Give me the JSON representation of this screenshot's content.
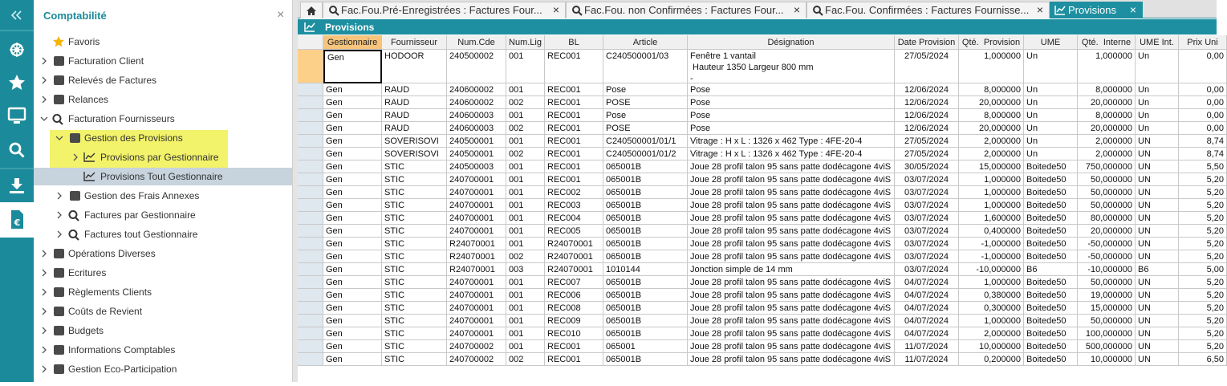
{
  "sidebar": {
    "title": "Comptabilité",
    "close": "×",
    "items": [
      {
        "label": "Favoris"
      },
      {
        "label": "Facturation Client"
      },
      {
        "label": "Relevés de Factures"
      },
      {
        "label": "Relances"
      },
      {
        "label": "Facturation Fournisseurs"
      },
      {
        "label": "Gestion des Provisions"
      },
      {
        "label": "Provisions par Gestionnaire"
      },
      {
        "label": "Provisions Tout Gestionnaire"
      },
      {
        "label": "Gestion des Frais Annexes"
      },
      {
        "label": "Factures par Gestionnaire"
      },
      {
        "label": "Factures tout Gestionnaire"
      },
      {
        "label": "Opérations Diverses"
      },
      {
        "label": "Ecritures"
      },
      {
        "label": "Règlements Clients"
      },
      {
        "label": "Coûts de Revient"
      },
      {
        "label": "Budgets"
      },
      {
        "label": "Informations Comptables"
      },
      {
        "label": "Gestion Eco-Participation"
      }
    ]
  },
  "tabs": [
    {
      "label": "Fac.Fou.Pré-Enregistrées : Factures Four...",
      "close": "×"
    },
    {
      "label": "Fac.Fou. non Confirmées : Factures Four...",
      "close": "×"
    },
    {
      "label": "Fac.Fou. Confirmées : Factures Fournisse...",
      "close": "×"
    },
    {
      "label": "Provisions",
      "close": "×"
    }
  ],
  "panel": {
    "title": "Provisions"
  },
  "table": {
    "columns": [
      "Gestionnaire",
      "Fournisseur",
      "Num.Cde",
      "Num.Lig",
      "BL",
      "Article",
      "Désignation",
      "Date Provision",
      "Qté.  Provision",
      "UME",
      "Qté.  Interne",
      "UME Int.",
      "Prix Uni"
    ],
    "rows": [
      [
        "Gen",
        "HODOOR",
        "240500002",
        "001",
        "REC001",
        "C240500001/03",
        "Fenêtre 1 vantail\n Hauteur 1350 Largeur 800 mm\n-",
        "27/05/2024",
        "1,000000",
        "Un",
        "1,000000",
        "Un",
        "0,00"
      ],
      [
        "Gen",
        "RAUD",
        "240600002",
        "001",
        "REC001",
        "Pose",
        "Pose",
        "12/06/2024",
        "8,000000",
        "Un",
        "8,000000",
        "Un",
        "0,00"
      ],
      [
        "Gen",
        "RAUD",
        "240600002",
        "002",
        "REC001",
        "POSE",
        "Pose",
        "12/06/2024",
        "20,000000",
        "Un",
        "20,000000",
        "Un",
        "0,00"
      ],
      [
        "Gen",
        "RAUD",
        "240600003",
        "001",
        "REC001",
        "Pose",
        "Pose",
        "12/06/2024",
        "8,000000",
        "Un",
        "8,000000",
        "Un",
        "0,00"
      ],
      [
        "Gen",
        "RAUD",
        "240600003",
        "002",
        "REC001",
        "POSE",
        "Pose",
        "12/06/2024",
        "20,000000",
        "Un",
        "20,000000",
        "Un",
        "0,00"
      ],
      [
        "Gen",
        "SOVERISOVI",
        "240500001",
        "001",
        "REC001",
        "C240500001/01/1",
        "Vitrage : H x L : 1326 x 462 Type : 4FE-20-4",
        "27/05/2024",
        "2,000000",
        "Un",
        "2,000000",
        "UN",
        "8,74"
      ],
      [
        "Gen",
        "SOVERISOVI",
        "240500001",
        "002",
        "REC001",
        "C240500001/01/2",
        "Vitrage : H x L : 1326 x 462 Type : 4FE-20-4",
        "27/05/2024",
        "2,000000",
        "Un",
        "2,000000",
        "UN",
        "8,74"
      ],
      [
        "Gen",
        "STIC",
        "240500003",
        "001",
        "REC001",
        "065001B",
        "Joue 28 profil talon 95 sans patte dodécagone 4viS",
        "30/05/2024",
        "15,000000",
        "Boitede50",
        "750,000000",
        "UN",
        "5,50"
      ],
      [
        "Gen",
        "STIC",
        "240700001",
        "001",
        "REC001",
        "065001B",
        "Joue 28 profil talon 95 sans patte dodécagone 4viS",
        "03/07/2024",
        "1,000000",
        "Boitede50",
        "50,000000",
        "UN",
        "5,20"
      ],
      [
        "Gen",
        "STIC",
        "240700001",
        "001",
        "REC002",
        "065001B",
        "Joue 28 profil talon 95 sans patte dodécagone 4viS",
        "03/07/2024",
        "1,000000",
        "Boitede50",
        "50,000000",
        "UN",
        "5,20"
      ],
      [
        "Gen",
        "STIC",
        "240700001",
        "001",
        "REC003",
        "065001B",
        "Joue 28 profil talon 95 sans patte dodécagone 4viS",
        "03/07/2024",
        "1,000000",
        "Boitede50",
        "50,000000",
        "UN",
        "5,20"
      ],
      [
        "Gen",
        "STIC",
        "240700001",
        "001",
        "REC004",
        "065001B",
        "Joue 28 profil talon 95 sans patte dodécagone 4viS",
        "03/07/2024",
        "1,600000",
        "Boitede50",
        "80,000000",
        "UN",
        "5,20"
      ],
      [
        "Gen",
        "STIC",
        "240700001",
        "001",
        "REC005",
        "065001B",
        "Joue 28 profil talon 95 sans patte dodécagone 4viS",
        "03/07/2024",
        "0,400000",
        "Boitede50",
        "20,000000",
        "UN",
        "5,20"
      ],
      [
        "Gen",
        "STIC",
        "R24070001",
        "001",
        "R24070001",
        "065001B",
        "Joue 28 profil talon 95 sans patte dodécagone 4viS",
        "03/07/2024",
        "-1,000000",
        "Boitede50",
        "-50,000000",
        "UN",
        "5,20"
      ],
      [
        "Gen",
        "STIC",
        "R24070001",
        "002",
        "R24070001",
        "065001B",
        "Joue 28 profil talon 95 sans patte dodécagone 4viS",
        "03/07/2024",
        "-1,000000",
        "Boitede50",
        "-50,000000",
        "UN",
        "5,20"
      ],
      [
        "Gen",
        "STIC",
        "R24070001",
        "003",
        "R24070001",
        "1010144",
        "Jonction simple de 14 mm",
        "03/07/2024",
        "-10,000000",
        "B6",
        "-10,000000",
        "B6",
        "5,00"
      ],
      [
        "Gen",
        "STIC",
        "240700001",
        "001",
        "REC007",
        "065001B",
        "Joue 28 profil talon 95 sans patte dodécagone 4viS",
        "04/07/2024",
        "1,000000",
        "Boitede50",
        "50,000000",
        "UN",
        "5,20"
      ],
      [
        "Gen",
        "STIC",
        "240700001",
        "001",
        "REC006",
        "065001B",
        "Joue 28 profil talon 95 sans patte dodécagone 4viS",
        "04/07/2024",
        "0,380000",
        "Boitede50",
        "19,000000",
        "UN",
        "5,20"
      ],
      [
        "Gen",
        "STIC",
        "240700001",
        "001",
        "REC008",
        "065001B",
        "Joue 28 profil talon 95 sans patte dodécagone 4viS",
        "04/07/2024",
        "0,300000",
        "Boitede50",
        "15,000000",
        "UN",
        "5,20"
      ],
      [
        "Gen",
        "STIC",
        "240700001",
        "001",
        "REC009",
        "065001B",
        "Joue 28 profil talon 95 sans patte dodécagone 4viS",
        "04/07/2024",
        "1,000000",
        "Boitede50",
        "50,000000",
        "UN",
        "5,20"
      ],
      [
        "Gen",
        "STIC",
        "240700001",
        "001",
        "REC010",
        "065001B",
        "Joue 28 profil talon 95 sans patte dodécagone 4viS",
        "04/07/2024",
        "2,000000",
        "Boitede50",
        "100,000000",
        "UN",
        "5,20"
      ],
      [
        "Gen",
        "STIC",
        "240700002",
        "001",
        "REC001",
        "065001",
        "Joue 28 profil talon 95 sans patte dodécagone 4viS",
        "11/07/2024",
        "10,000000",
        "Boitede50",
        "500,000000",
        "UN",
        "5,20"
      ],
      [
        "Gen",
        "STIC",
        "240700002",
        "002",
        "REC001",
        "065001B",
        "Joue 28 profil talon 95 sans patte dodécagone 4viS",
        "11/07/2024",
        "0,200000",
        "Boitede50",
        "10,000000",
        "UN",
        "6,50"
      ]
    ]
  }
}
